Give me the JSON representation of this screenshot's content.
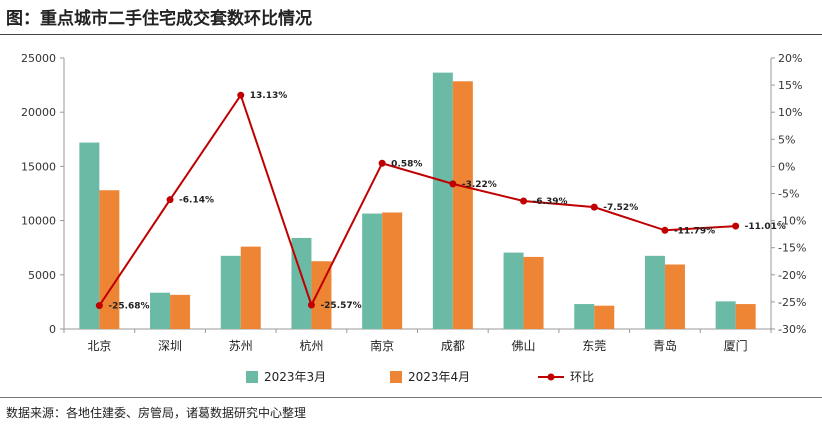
{
  "figure_title": "图：重点城市二手住宅成交套数环比情况",
  "source_note": "数据来源：各地住建委、房管局，诸葛数据研究中心整理",
  "chart_data": {
    "type": "bar",
    "categories": [
      "北京",
      "深圳",
      "苏州",
      "杭州",
      "南京",
      "成都",
      "佛山",
      "东莞",
      "青岛",
      "厦门"
    ],
    "series": [
      {
        "name": "2023年3月",
        "type": "bar",
        "axis": "left",
        "color": "#6bbaa6",
        "values": [
          17200,
          3350,
          6750,
          8400,
          10650,
          23650,
          7050,
          2300,
          6750,
          2550
        ]
      },
      {
        "name": "2023年4月",
        "type": "bar",
        "axis": "left",
        "color": "#ed8535",
        "values": [
          12800,
          3150,
          7600,
          6250,
          10750,
          22850,
          6650,
          2150,
          5950,
          2300
        ]
      },
      {
        "name": "环比",
        "type": "line",
        "axis": "right",
        "color": "#c00000",
        "values": [
          -25.68,
          -6.14,
          13.13,
          -25.57,
          0.58,
          -3.22,
          -6.39,
          -7.52,
          -11.79,
          -11.01
        ],
        "labels": [
          "-25.68%",
          "-6.14%",
          "13.13%",
          "-25.57%",
          "0.58%",
          "-3.22%",
          "-6.39%",
          "-7.52%",
          "-11.79%",
          "-11.01%"
        ]
      }
    ],
    "left_axis": {
      "min": 0,
      "max": 25000,
      "ticks": [
        "0",
        "5000",
        "10000",
        "15000",
        "20000",
        "25000"
      ],
      "tick_values": [
        0,
        5000,
        10000,
        15000,
        20000,
        25000
      ]
    },
    "right_axis": {
      "min": -30,
      "max": 20,
      "ticks": [
        "-30%",
        "-25%",
        "-20%",
        "-15%",
        "-10%",
        "-5%",
        "0%",
        "5%",
        "10%",
        "15%",
        "20%"
      ],
      "tick_values": [
        -30,
        -25,
        -20,
        -15,
        -10,
        -5,
        0,
        5,
        10,
        15,
        20
      ]
    },
    "grid": false,
    "legend_position": "bottom"
  }
}
